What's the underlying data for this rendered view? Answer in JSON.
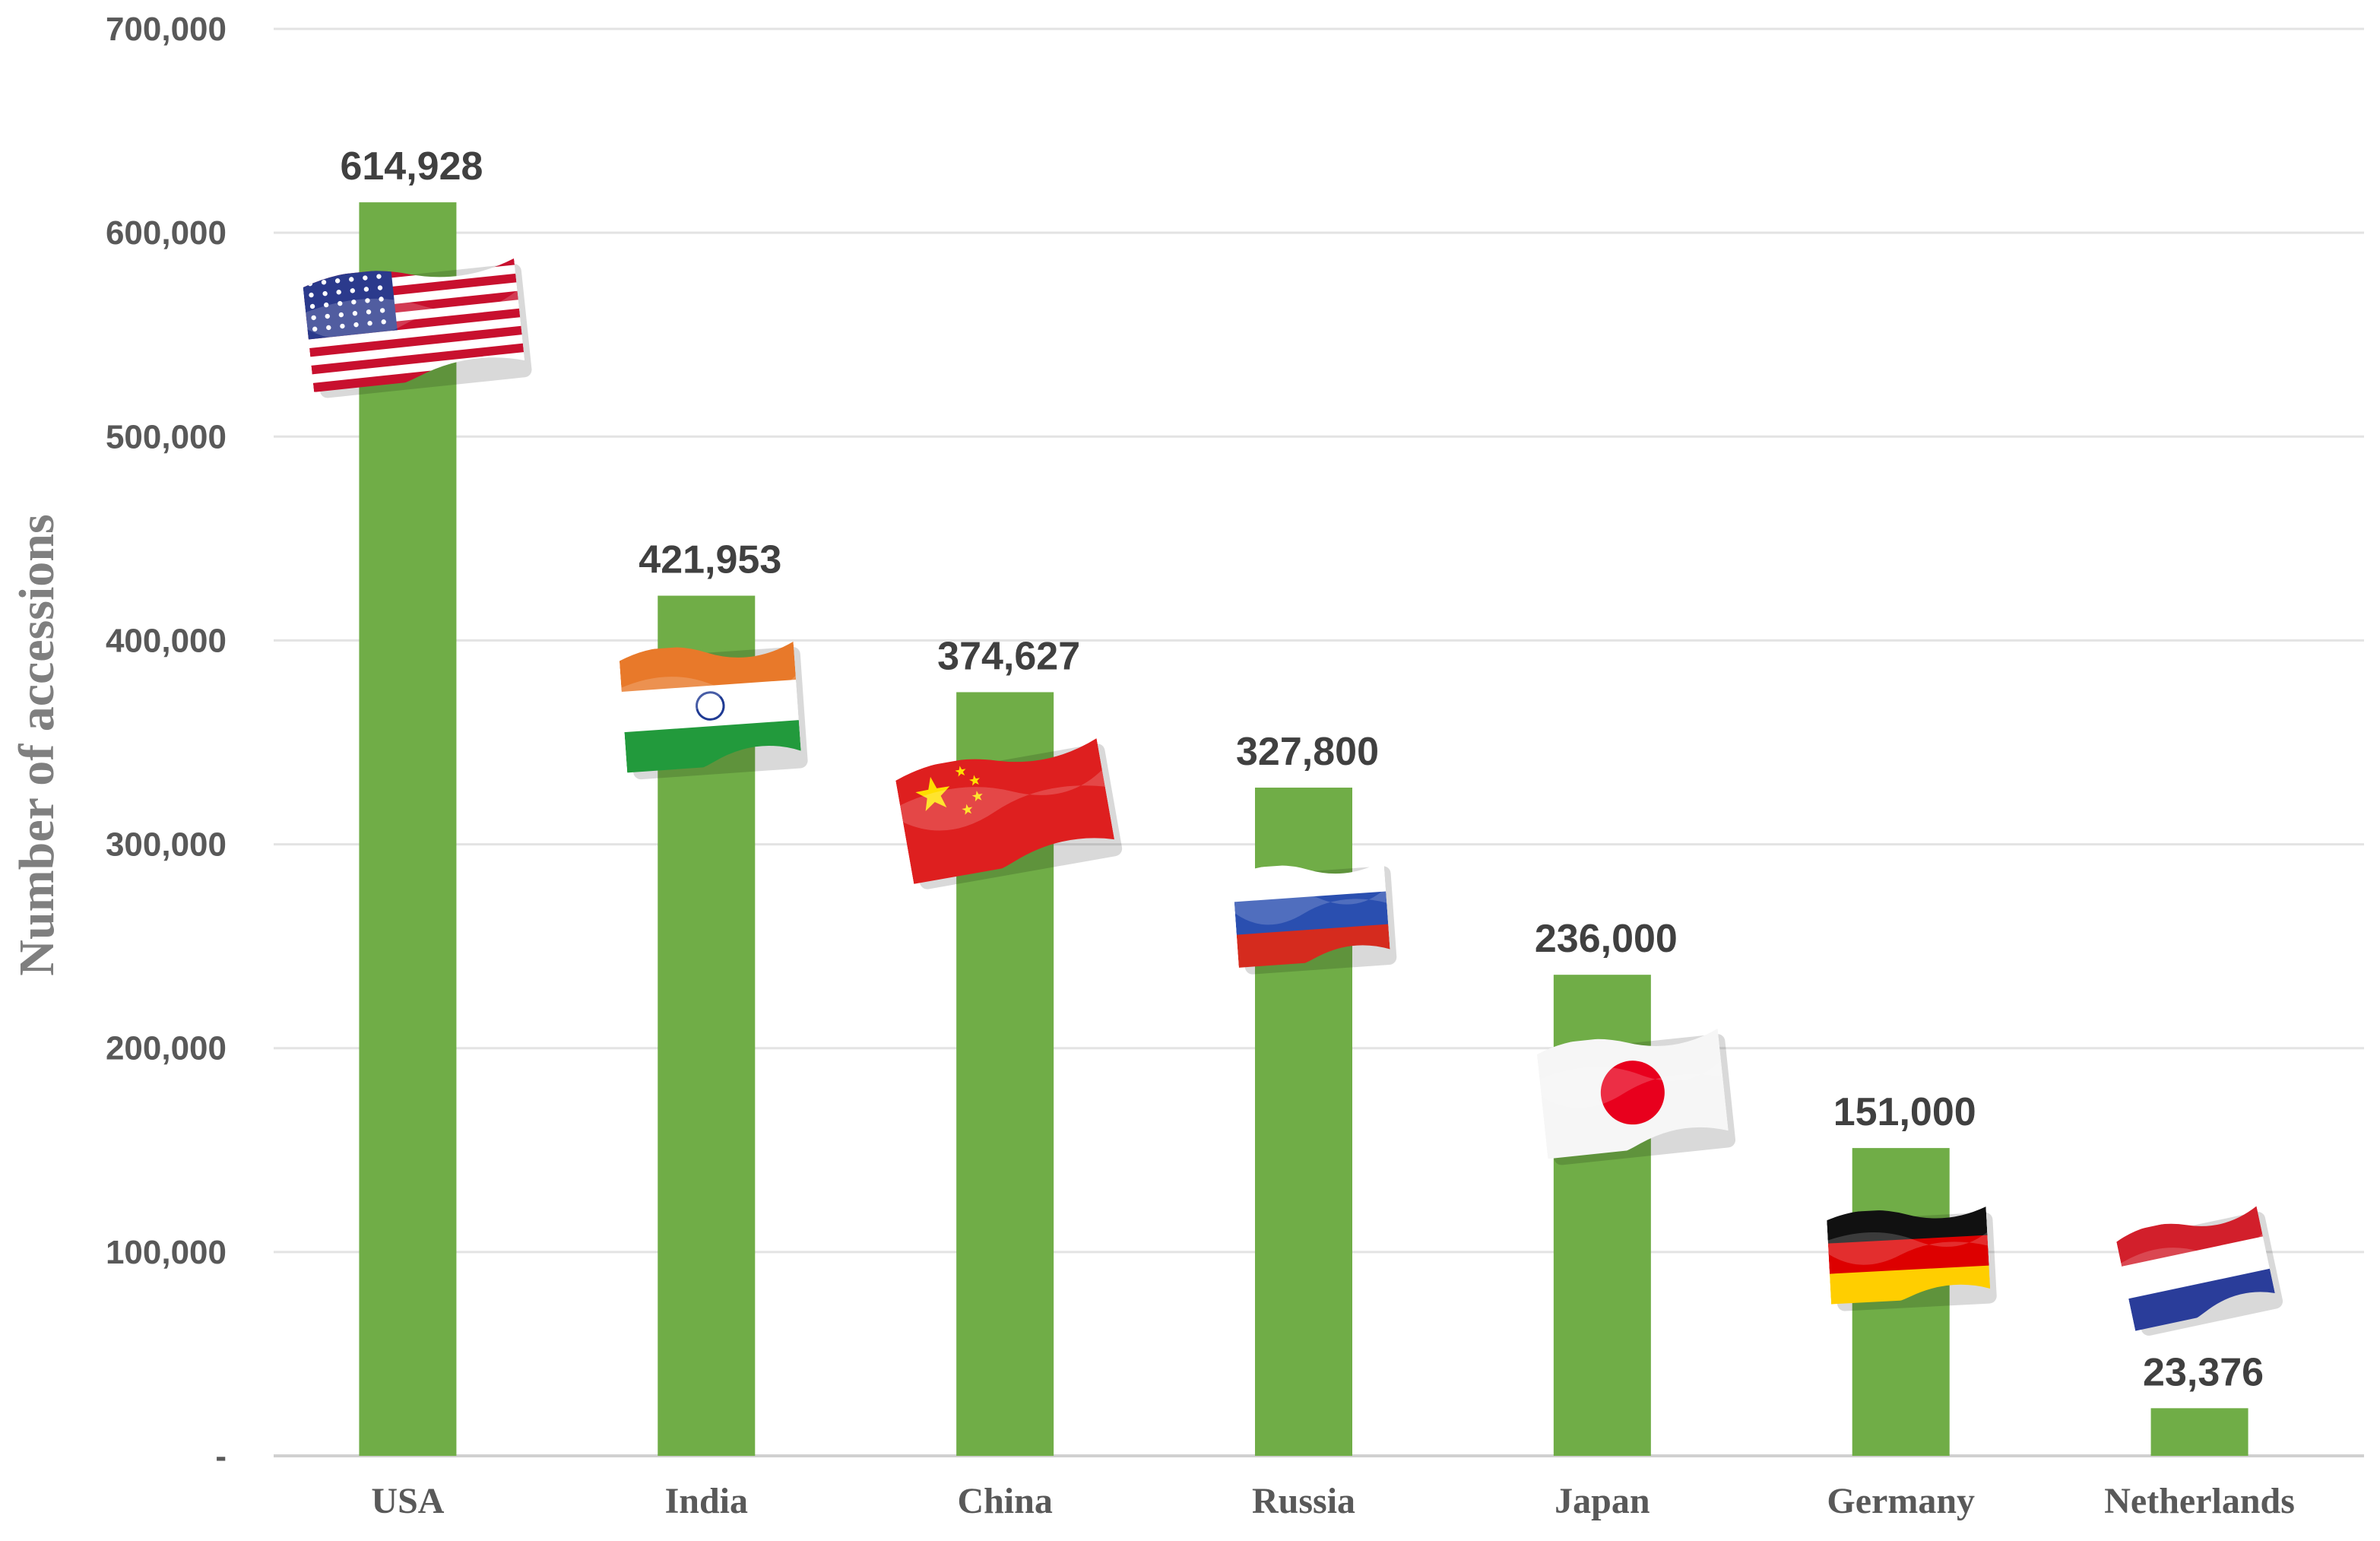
{
  "chart_data": {
    "type": "bar",
    "categories": [
      "USA",
      "India",
      "China",
      "Russia",
      "Japan",
      "Germany",
      "Netherlands"
    ],
    "values": [
      614928,
      421953,
      374627,
      327800,
      236000,
      151000,
      23376
    ],
    "value_labels": [
      "614,928",
      "421,953",
      "374,627",
      "327,800",
      "236,000",
      "151,000",
      "23,376"
    ],
    "ylabel": "Number of accessions",
    "xlabel": "",
    "ylim": [
      0,
      700000
    ],
    "y_ticks": [
      0,
      100000,
      200000,
      300000,
      400000,
      500000,
      600000,
      700000
    ],
    "y_tick_labels": [
      "-",
      "100,000",
      "200,000",
      "300,000",
      "400,000",
      "500,000",
      "600,000",
      "700,000"
    ],
    "grid": true,
    "bar_color": "#70AD47",
    "flag_icons": [
      "usa-flag-icon",
      "india-flag-icon",
      "china-flag-icon",
      "russia-flag-icon",
      "japan-flag-icon",
      "germany-flag-icon",
      "netherlands-flag-icon"
    ]
  }
}
